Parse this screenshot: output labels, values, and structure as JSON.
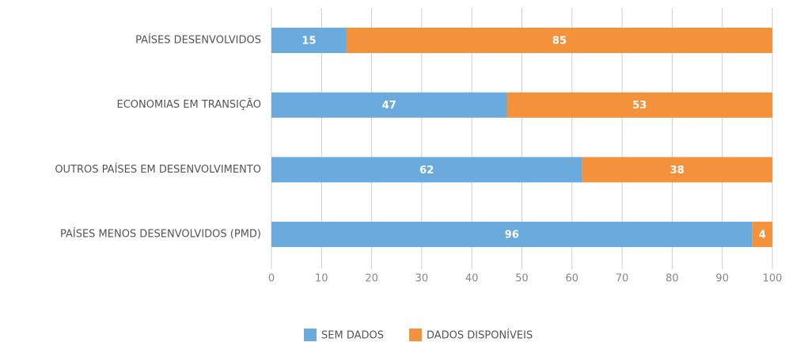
{
  "chart_data": {
    "type": "bar",
    "orientation": "horizontal",
    "stacked": true,
    "categories": [
      "PAÍSES DESENVOLVIDOS",
      "ECONOMIAS EM TRANSIÇÃO",
      "OUTROS PAÍSES EM DESENVOLVIMENTO",
      "PAÍSES MENOS DESENVOLVIDOS (PMD)"
    ],
    "series": [
      {
        "name": "SEM DADOS",
        "color": "#6aaadc",
        "values": [
          15,
          47,
          62,
          96
        ]
      },
      {
        "name": "DADOS DISPONÍVEIS",
        "color": "#f4923c",
        "values": [
          85,
          53,
          38,
          4
        ]
      }
    ],
    "xlim": [
      0,
      100
    ],
    "xticks": [
      0,
      10,
      20,
      30,
      40,
      50,
      60,
      70,
      80,
      90,
      100
    ],
    "grid": true,
    "legend": "bottom"
  }
}
